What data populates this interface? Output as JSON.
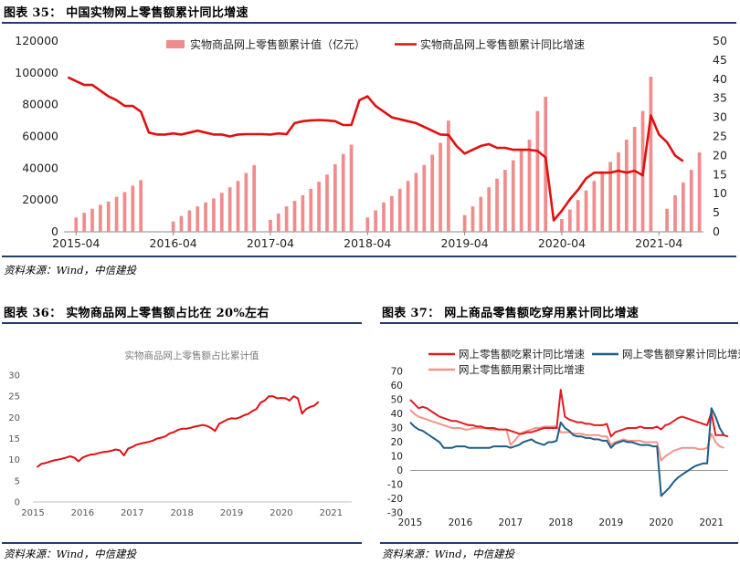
{
  "fig35": {
    "title": "图表 35：   中国实物网上零售额累计同比增速",
    "source": "资料来源：Wind，中信建投"
  },
  "fig36": {
    "title": "图表 36：   实物商品网上零售额占比在 20%左右",
    "source": "资料来源：Wind，中信建投"
  },
  "fig37": {
    "title": "图表 37：   网上商品零售额吃穿用累计同比增速",
    "source": "资料来源：Wind，中信建投"
  },
  "chart_data": [
    {
      "type": "bar",
      "secondary_type": "line",
      "x_tick_labels": [
        "2015-04",
        "2016-04",
        "2017-04",
        "2018-04",
        "2019-04",
        "2020-04",
        "2021-04"
      ],
      "x_start": "2015-03",
      "y_left_ticks": [
        "0",
        "20000",
        "40000",
        "60000",
        "80000",
        "100000",
        "120000"
      ],
      "y_right_ticks": [
        "0",
        "5",
        "10",
        "15",
        "20",
        "25",
        "30",
        "35",
        "40",
        "45",
        "50"
      ],
      "ylim_left": [
        0,
        120000
      ],
      "ylim_right": [
        0,
        50
      ],
      "bar_color": "#f08c8c",
      "line_color": "#e01010",
      "series": [
        {
          "name": "实物商品网上零售额累计值（亿元）",
          "axis": "left",
          "values": [
            null,
            9000,
            12000,
            14500,
            17000,
            19000,
            22000,
            25000,
            29000,
            32500,
            null,
            null,
            null,
            6500,
            10000,
            13500,
            16000,
            18500,
            21000,
            24500,
            28000,
            32000,
            37000,
            42000,
            null,
            7500,
            11500,
            16000,
            19500,
            23000,
            27000,
            31500,
            36000,
            42500,
            49000,
            54800,
            null,
            9000,
            13500,
            18500,
            22500,
            27000,
            32000,
            37000,
            42000,
            48500,
            56000,
            70000,
            null,
            10500,
            16000,
            22000,
            28000,
            33500,
            39000,
            45000,
            51000,
            58000,
            76000,
            85000,
            null,
            8000,
            14000,
            20000,
            26000,
            32000,
            38000,
            44000,
            50000,
            58000,
            66000,
            76000,
            97600,
            null,
            14500,
            23000,
            31000,
            39000,
            50000
          ]
        },
        {
          "name": "实物商品网上零售额累计同比增速",
          "axis": "right",
          "values": [
            40.5,
            39.5,
            38.5,
            38.5,
            37,
            35.5,
            34.5,
            33,
            33,
            31.5,
            26,
            25.5,
            25.5,
            25.8,
            25.5,
            26,
            26.5,
            26,
            25.5,
            25.5,
            25,
            25.5,
            25.6,
            25.6,
            25.6,
            25.5,
            25.8,
            25.6,
            28.5,
            29,
            29.2,
            29.3,
            29.2,
            29,
            28,
            28,
            34.5,
            35.5,
            33,
            31.5,
            30,
            29.5,
            29,
            28.5,
            27.5,
            26.5,
            25.5,
            25.4,
            22.5,
            20.5,
            21.5,
            22.5,
            23,
            22,
            22,
            21.5,
            21.5,
            21.5,
            21.2,
            19.5,
            3,
            5.5,
            8.5,
            11,
            14,
            15.5,
            15.5,
            15.5,
            16,
            15.5,
            16,
            14.8,
            30.5,
            25.5,
            23.5,
            20,
            18.5
          ]
        }
      ]
    },
    {
      "type": "line",
      "title": "实物商品网上零售额占比累计值",
      "x_tick_labels": [
        "2015",
        "2016",
        "2017",
        "2018",
        "2019",
        "2020",
        "2021"
      ],
      "x_start": "2015-02",
      "y_ticks": [
        "0",
        "5",
        "10",
        "15",
        "20",
        "25",
        "30"
      ],
      "ylim": [
        0,
        30
      ],
      "line_color": "#e01010",
      "values": [
        8.2,
        9.0,
        9.2,
        9.5,
        9.8,
        10.0,
        10.2,
        10.5,
        10.8,
        10.5,
        9.6,
        10.5,
        10.9,
        11.2,
        11.3,
        11.6,
        11.8,
        11.9,
        12.1,
        12.4,
        12.2,
        11.0,
        12.6,
        13.0,
        13.5,
        13.8,
        14.0,
        14.2,
        14.5,
        15.0,
        15.2,
        15.5,
        16.2,
        16.5,
        17.0,
        17.3,
        17.3,
        17.5,
        17.8,
        18.0,
        18.2,
        18.0,
        17.5,
        16.8,
        18.5,
        19.0,
        19.5,
        19.8,
        19.7,
        20.0,
        20.5,
        20.8,
        21.5,
        22.0,
        23.5,
        24.0,
        25.0,
        25.0,
        24.5,
        24.6,
        24.5,
        24.0,
        25.0,
        24.5,
        20.9,
        22.0,
        22.5,
        22.8,
        23.7
      ]
    },
    {
      "type": "line",
      "x_tick_labels": [
        "2015",
        "2016",
        "2017",
        "2018",
        "2019",
        "2020",
        "2021"
      ],
      "x_start": "2015-01",
      "y_ticks": [
        "-30",
        "-20",
        "-10",
        "0",
        "10",
        "20",
        "30",
        "40",
        "50",
        "60",
        "70"
      ],
      "ylim": [
        -30,
        70
      ],
      "series": [
        {
          "name": "网上零售额吃累计同比增速",
          "color": "#e21b23",
          "values": [
            50,
            47,
            44,
            45,
            44,
            42,
            40,
            38,
            37,
            36,
            35,
            35,
            34,
            33,
            32,
            32,
            31,
            31,
            30,
            30,
            30,
            29,
            29,
            29,
            28,
            27,
            26,
            26,
            27,
            27,
            28,
            29,
            30,
            30,
            30,
            30,
            57,
            38,
            36,
            35,
            34,
            34,
            33,
            33,
            32,
            32,
            32,
            33,
            24,
            27,
            28,
            29,
            30,
            30,
            30,
            31,
            30,
            30,
            30,
            31,
            29,
            32,
            33,
            35,
            37,
            38,
            37,
            36,
            35,
            34,
            33,
            32,
            41,
            25,
            25,
            25,
            24
          ]
        },
        {
          "name": "网上零售额穿累计同比增速",
          "color": "#1d5e87",
          "values": [
            34,
            31,
            29,
            28,
            26,
            24,
            22,
            20,
            16,
            16,
            16,
            17,
            17,
            17,
            16,
            16,
            16,
            16,
            16,
            16,
            17,
            17,
            17,
            17,
            16,
            17,
            18,
            20,
            21,
            22,
            20,
            19,
            18,
            20,
            20,
            21,
            34,
            30,
            28,
            25,
            24,
            24,
            23,
            23,
            22,
            22,
            21,
            21,
            16,
            19,
            20,
            21,
            20,
            20,
            19,
            18,
            18,
            18,
            17,
            17,
            -18,
            -15,
            -12,
            -8,
            -5,
            -3,
            -1,
            1,
            3,
            4,
            5,
            5,
            44,
            38,
            30,
            25
          ]
        },
        {
          "name": "网上零售额用累计同比增速",
          "color": "#f1948a",
          "values": [
            43,
            40,
            38,
            37,
            36,
            35,
            34,
            33,
            32,
            31,
            30,
            30,
            30,
            29,
            29,
            30,
            30,
            30,
            30,
            29,
            29,
            29,
            29,
            29,
            18,
            21,
            25,
            27,
            28,
            29,
            30,
            30,
            31,
            31,
            31,
            31,
            27,
            27,
            27,
            26,
            26,
            26,
            25,
            25,
            25,
            25,
            24,
            24,
            18,
            20,
            21,
            22,
            21,
            21,
            21,
            21,
            20,
            20,
            20,
            20,
            7,
            10,
            12,
            14,
            15,
            16,
            16,
            16,
            16,
            15,
            15,
            16,
            26,
            20,
            17,
            16
          ]
        }
      ]
    }
  ]
}
